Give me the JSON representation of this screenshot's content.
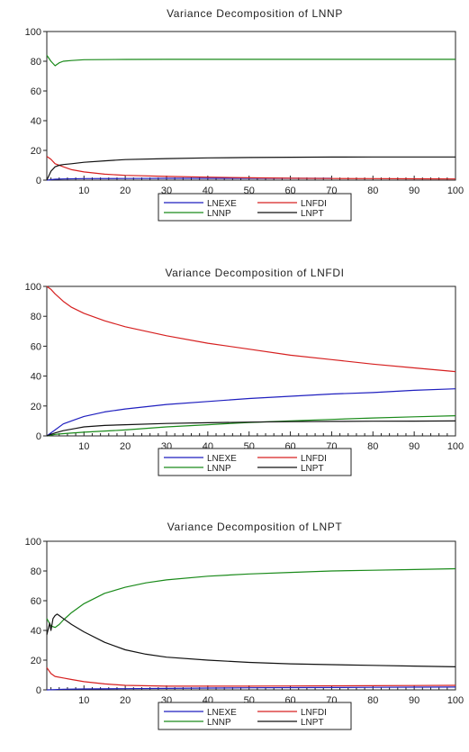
{
  "chart_data": [
    {
      "type": "line",
      "title": "Variance Decomposition of LNNP",
      "xlabel": "",
      "ylabel": "",
      "xlim": [
        1,
        100
      ],
      "ylim": [
        0,
        100
      ],
      "xticks": [
        10,
        20,
        30,
        40,
        50,
        60,
        70,
        80,
        90,
        100
      ],
      "yticks": [
        0,
        20,
        40,
        60,
        80,
        100
      ],
      "grid": false,
      "legend_position": "bottom",
      "series": [
        {
          "name": "LNEXE",
          "color": "#1f1fbf",
          "x": [
            1,
            2,
            3,
            5,
            10,
            20,
            30,
            40,
            50,
            60,
            70
          ],
          "y": [
            0,
            0.3,
            0.6,
            0.8,
            1.0,
            1.1,
            1.2,
            1.2,
            1.2,
            1.2,
            1.2
          ]
        },
        {
          "name": "LNFDI",
          "color": "#d62020",
          "x": [
            1,
            2,
            3,
            5,
            7,
            10,
            15,
            20,
            30,
            40,
            50,
            60,
            70,
            80,
            90,
            100
          ],
          "y": [
            16,
            14,
            11,
            9,
            7,
            5.5,
            4,
            3.2,
            2.5,
            2.0,
            1.6,
            1.3,
            1.1,
            1.0,
            0.9,
            0.8
          ]
        },
        {
          "name": "LNNP",
          "color": "#1a8a1a",
          "x": [
            1,
            2,
            3,
            4,
            5,
            7,
            10,
            20,
            30,
            40,
            50,
            60,
            70,
            80,
            90,
            100
          ],
          "y": [
            84,
            80,
            77,
            79,
            80,
            80.5,
            81,
            81.2,
            81.3,
            81.3,
            81.3,
            81.3,
            81.3,
            81.3,
            81.3,
            81.3
          ]
        },
        {
          "name": "LNPT",
          "color": "#111111",
          "x": [
            1,
            2,
            3,
            4,
            5,
            7,
            10,
            15,
            20,
            30,
            40,
            50,
            60,
            70,
            80,
            90,
            100
          ],
          "y": [
            0,
            6,
            9,
            10,
            10.5,
            11,
            12,
            13,
            13.8,
            14.5,
            15,
            15.2,
            15.4,
            15.5,
            15.6,
            15.6,
            15.6
          ]
        }
      ]
    },
    {
      "type": "line",
      "title": "Variance Decomposition of LNFDI",
      "xlabel": "",
      "ylabel": "",
      "xlim": [
        1,
        100
      ],
      "ylim": [
        0,
        100
      ],
      "xticks": [
        10,
        20,
        30,
        40,
        50,
        60,
        70,
        80,
        90,
        100
      ],
      "yticks": [
        0,
        20,
        40,
        60,
        80,
        100
      ],
      "grid": false,
      "legend_position": "bottom",
      "series": [
        {
          "name": "LNEXE",
          "color": "#1f1fbf",
          "x": [
            1,
            3,
            5,
            8,
            10,
            15,
            20,
            30,
            40,
            50,
            60,
            70,
            80,
            90,
            100
          ],
          "y": [
            0,
            4,
            8,
            11,
            13,
            16,
            18,
            21,
            23,
            25,
            26.5,
            28,
            29,
            30.5,
            31.5
          ]
        },
        {
          "name": "LNFDI",
          "color": "#d62020",
          "x": [
            1,
            2,
            3,
            5,
            7,
            10,
            15,
            20,
            30,
            40,
            50,
            60,
            70,
            80,
            90,
            100
          ],
          "y": [
            100,
            98,
            95,
            90,
            86,
            82,
            77,
            73,
            67,
            62,
            58,
            54,
            51,
            48,
            45.5,
            43
          ]
        },
        {
          "name": "LNNP",
          "color": "#1a8a1a",
          "x": [
            1,
            3,
            5,
            10,
            20,
            30,
            40,
            50,
            60,
            70,
            80,
            90,
            100
          ],
          "y": [
            0,
            1,
            1.5,
            2.5,
            4,
            6,
            7.5,
            9,
            10,
            11,
            12,
            12.8,
            13.5
          ]
        },
        {
          "name": "LNPT",
          "color": "#111111",
          "x": [
            1,
            3,
            5,
            8,
            10,
            15,
            20,
            30,
            40,
            50,
            60,
            70,
            80,
            90,
            100
          ],
          "y": [
            0,
            2,
            3.5,
            5,
            6,
            7,
            7.5,
            8.3,
            8.8,
            9.2,
            9.5,
            9.7,
            9.8,
            9.9,
            10
          ]
        }
      ]
    },
    {
      "type": "line",
      "title": "Variance Decomposition of LNPT",
      "xlabel": "",
      "ylabel": "",
      "xlim": [
        1,
        100
      ],
      "ylim": [
        0,
        100
      ],
      "xticks": [
        10,
        20,
        30,
        40,
        50,
        60,
        70,
        80,
        90,
        100
      ],
      "yticks": [
        0,
        20,
        40,
        60,
        80,
        100
      ],
      "grid": false,
      "legend_position": "bottom",
      "series": [
        {
          "name": "LNEXE",
          "color": "#1f1fbf",
          "x": [
            1,
            3,
            5,
            10,
            20,
            30,
            40,
            50,
            60,
            70,
            80,
            90,
            100
          ],
          "y": [
            0,
            0.2,
            0.4,
            0.6,
            0.8,
            1.0,
            1.2,
            1.4,
            1.5,
            1.6,
            1.7,
            1.8,
            1.9
          ]
        },
        {
          "name": "LNFDI",
          "color": "#d62020",
          "x": [
            1,
            2,
            3,
            5,
            7,
            10,
            15,
            20,
            30,
            40,
            50,
            60,
            70,
            80,
            90,
            100
          ],
          "y": [
            15,
            11,
            9,
            8,
            7,
            5.5,
            4,
            3,
            2.5,
            2.5,
            2.5,
            2.6,
            2.7,
            2.8,
            2.9,
            3
          ]
        },
        {
          "name": "LNNP",
          "color": "#1a8a1a",
          "x": [
            1,
            2,
            3,
            4,
            5,
            7,
            10,
            15,
            20,
            25,
            30,
            40,
            50,
            60,
            70,
            80,
            90,
            100
          ],
          "y": [
            48,
            43,
            42,
            44,
            47,
            52,
            58,
            65,
            69,
            72,
            74,
            76.5,
            78,
            79,
            80,
            80.5,
            81,
            81.5
          ]
        },
        {
          "name": "LNPT",
          "color": "#111111",
          "x": [
            1,
            1.7,
            2,
            2.5,
            3,
            3.5,
            4,
            5,
            7,
            10,
            15,
            20,
            25,
            30,
            40,
            50,
            60,
            70,
            80,
            90,
            100
          ],
          "y": [
            37,
            45,
            40,
            48,
            50,
            51,
            50,
            48,
            44,
            39,
            32,
            27,
            24,
            22,
            20,
            18.5,
            17.5,
            17,
            16.5,
            16,
            15.5
          ]
        }
      ]
    }
  ]
}
